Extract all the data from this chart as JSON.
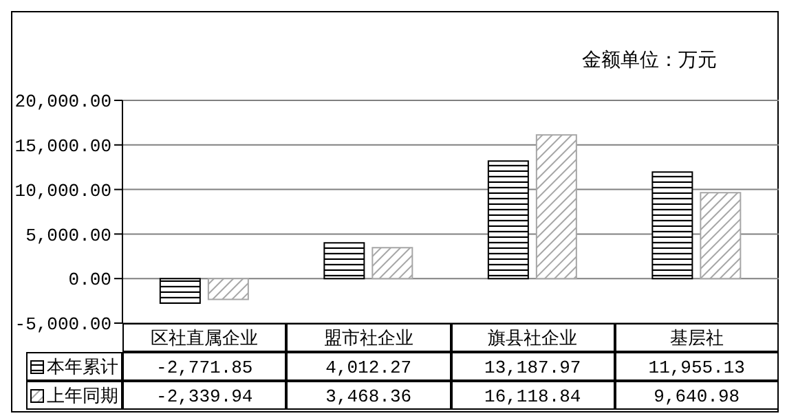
{
  "chart_data": {
    "type": "bar",
    "categories": [
      "区社直属企业",
      "盟市社企业",
      "旗县社企业",
      "基层社"
    ],
    "series": [
      {
        "name": "本年累计",
        "color": "#000000",
        "values": [
          -2771.85,
          4012.27,
          13187.97,
          11955.13
        ],
        "value_labels": [
          "-2,771.85",
          "4,012.27",
          "13,187.97",
          "11,955.13"
        ]
      },
      {
        "name": "上年同期",
        "color": "#a6a6a6",
        "values": [
          -2339.94,
          3468.36,
          16118.84,
          9640.98
        ],
        "value_labels": [
          "-2,339.94",
          "3,468.36",
          "16,118.84",
          "9,640.98"
        ]
      }
    ],
    "ylim": [
      -5000,
      20000
    ],
    "yticks": [
      {
        "value": -5000,
        "label": "-5,000.00"
      },
      {
        "value": 0,
        "label": "0.00"
      },
      {
        "value": 5000,
        "label": "5,000.00"
      },
      {
        "value": 10000,
        "label": "10,000.00"
      },
      {
        "value": 15000,
        "label": "15,000.00"
      },
      {
        "value": 20000,
        "label": "20,000.00"
      }
    ],
    "grid": "y",
    "legend": "bottom left",
    "annotations": [
      "金额单位：万元"
    ]
  }
}
